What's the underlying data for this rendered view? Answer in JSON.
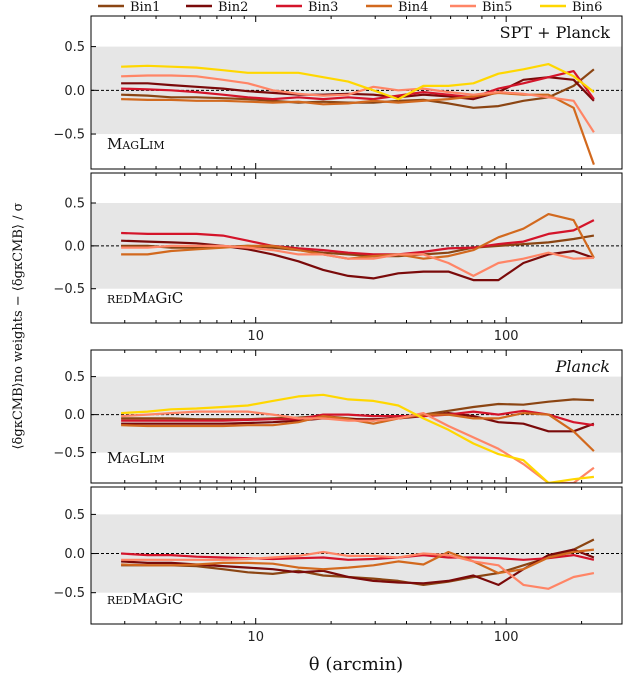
{
  "legend": {
    "entries": [
      {
        "name": "Bin1",
        "color": "#8b4513"
      },
      {
        "name": "Bin2",
        "color": "#7a0a0a"
      },
      {
        "name": "Bin3",
        "color": "#d4142a"
      },
      {
        "name": "Bin4",
        "color": "#d2691e"
      },
      {
        "name": "Bin5",
        "color": "#ff8566"
      },
      {
        "name": "Bin6",
        "color": "#ffd700"
      }
    ]
  },
  "ylabel": "⟨δgκCMB⟩no weights − ⟨δgκCMB⟩ / σ",
  "xlabel": "θ (arcmin)",
  "chart_data": [
    {
      "type": "line",
      "panel_label": "MagLim",
      "corner_label": "SPT + Planck",
      "ylim": [
        -0.9,
        0.85
      ],
      "xlim": [
        2.2,
        290
      ],
      "xscale": "log",
      "band": [
        -0.5,
        0.5
      ],
      "yticks": [
        "0.5",
        "0.0",
        "−0.5"
      ],
      "xticklabels": [],
      "x": [
        2.9,
        3.7,
        4.6,
        5.8,
        7.4,
        9.3,
        11.7,
        14.8,
        18.6,
        23.4,
        29.5,
        37.1,
        46.7,
        58.8,
        74.0,
        93.1,
        117.2,
        147.6,
        185.8,
        223.9
      ],
      "series": [
        {
          "name": "Bin1",
          "color": "#8b4513",
          "values": [
            -0.05,
            -0.06,
            -0.08,
            -0.08,
            -0.09,
            -0.1,
            -0.12,
            -0.14,
            -0.13,
            -0.14,
            -0.14,
            -0.12,
            -0.11,
            -0.15,
            -0.2,
            -0.18,
            -0.12,
            -0.08,
            0.05,
            0.24
          ]
        },
        {
          "name": "Bin2",
          "color": "#7a0a0a",
          "values": [
            0.08,
            0.08,
            0.06,
            0.04,
            0.02,
            -0.01,
            -0.03,
            -0.05,
            -0.05,
            -0.04,
            -0.05,
            -0.08,
            -0.05,
            -0.07,
            -0.1,
            -0.02,
            0.12,
            0.15,
            0.12,
            -0.12
          ]
        },
        {
          "name": "Bin3",
          "color": "#d4142a",
          "values": [
            0.02,
            0.01,
            0.0,
            -0.02,
            -0.05,
            -0.08,
            -0.1,
            -0.08,
            -0.1,
            -0.08,
            -0.1,
            -0.06,
            -0.02,
            -0.05,
            -0.08,
            0.02,
            0.08,
            0.15,
            0.22,
            -0.1
          ]
        },
        {
          "name": "Bin4",
          "color": "#d2691e",
          "values": [
            -0.1,
            -0.11,
            -0.11,
            -0.12,
            -0.12,
            -0.13,
            -0.14,
            -0.13,
            -0.16,
            -0.15,
            -0.12,
            -0.14,
            -0.12,
            -0.1,
            -0.07,
            -0.03,
            -0.05,
            -0.05,
            -0.2,
            -0.85
          ]
        },
        {
          "name": "Bin5",
          "color": "#ff8566",
          "values": [
            0.16,
            0.17,
            0.17,
            0.16,
            0.12,
            0.08,
            0.0,
            -0.04,
            -0.06,
            -0.05,
            0.04,
            0.0,
            0.02,
            -0.02,
            -0.05,
            -0.02,
            -0.04,
            -0.08,
            -0.12,
            -0.48
          ]
        },
        {
          "name": "Bin6",
          "color": "#ffd700",
          "values": [
            0.27,
            0.28,
            0.27,
            0.26,
            0.23,
            0.2,
            0.2,
            0.2,
            0.15,
            0.1,
            0.0,
            -0.1,
            0.05,
            0.05,
            0.08,
            0.19,
            0.24,
            0.3,
            0.16,
            -0.02
          ]
        }
      ]
    },
    {
      "type": "line",
      "panel_label": "redMaGiC",
      "corner_label": "",
      "ylim": [
        -0.9,
        0.85
      ],
      "xlim": [
        2.2,
        290
      ],
      "xscale": "log",
      "band": [
        -0.5,
        0.5
      ],
      "yticks": [
        "0.5",
        "0.0",
        "−0.5"
      ],
      "xticklabels": [
        "10",
        "100"
      ],
      "x": [
        2.9,
        3.7,
        4.6,
        5.8,
        7.4,
        9.3,
        11.7,
        14.8,
        18.6,
        23.4,
        29.5,
        37.1,
        46.7,
        58.8,
        74.0,
        93.1,
        117.2,
        147.6,
        185.8,
        223.9
      ],
      "series": [
        {
          "name": "Bin1",
          "color": "#8b4513",
          "values": [
            0.0,
            0.0,
            -0.02,
            -0.02,
            -0.01,
            0.0,
            -0.02,
            -0.05,
            -0.08,
            -0.1,
            -0.12,
            -0.12,
            -0.1,
            -0.08,
            -0.02,
            0.0,
            0.02,
            0.04,
            0.08,
            0.12
          ]
        },
        {
          "name": "Bin2",
          "color": "#7a0a0a",
          "values": [
            0.06,
            0.05,
            0.04,
            0.03,
            0.0,
            -0.04,
            -0.1,
            -0.18,
            -0.28,
            -0.35,
            -0.38,
            -0.32,
            -0.3,
            -0.3,
            -0.4,
            -0.4,
            -0.2,
            -0.1,
            -0.06,
            -0.14
          ]
        },
        {
          "name": "Bin3",
          "color": "#d4142a",
          "values": [
            0.15,
            0.14,
            0.14,
            0.14,
            0.12,
            0.06,
            0.0,
            -0.03,
            -0.05,
            -0.08,
            -0.1,
            -0.1,
            -0.07,
            -0.03,
            -0.02,
            0.02,
            0.05,
            0.14,
            0.18,
            0.3
          ]
        },
        {
          "name": "Bin4",
          "color": "#d2691e",
          "values": [
            -0.1,
            -0.1,
            -0.06,
            -0.04,
            -0.02,
            0.0,
            0.0,
            -0.05,
            -0.1,
            -0.15,
            -0.12,
            -0.1,
            -0.15,
            -0.12,
            -0.05,
            0.1,
            0.2,
            0.37,
            0.3,
            -0.14
          ]
        },
        {
          "name": "Bin5",
          "color": "#ff8566",
          "values": [
            -0.02,
            -0.02,
            0.0,
            0.0,
            0.0,
            -0.02,
            -0.05,
            -0.1,
            -0.1,
            -0.15,
            -0.15,
            -0.1,
            -0.1,
            -0.2,
            -0.35,
            -0.2,
            -0.15,
            -0.08,
            -0.15,
            -0.14
          ]
        },
        {
          "name": "Bin6",
          "color": "#ffd700",
          "values": [
            null,
            null,
            null,
            null,
            null,
            null,
            null,
            null,
            null,
            null,
            null,
            null,
            null,
            null,
            null,
            null,
            null,
            null,
            null,
            null
          ]
        }
      ]
    },
    {
      "type": "line",
      "panel_label": "MagLim",
      "corner_label": "Planck",
      "ylim": [
        -0.9,
        0.85
      ],
      "xlim": [
        2.2,
        290
      ],
      "xscale": "log",
      "band": [
        -0.5,
        0.5
      ],
      "yticks": [
        "0.5",
        "0.0",
        "−0.5"
      ],
      "xticklabels": [],
      "x": [
        2.9,
        3.7,
        4.6,
        5.8,
        7.4,
        9.3,
        11.7,
        14.8,
        18.6,
        23.4,
        29.5,
        37.1,
        46.7,
        58.8,
        74.0,
        93.1,
        117.2,
        147.6,
        185.8,
        223.9
      ],
      "series": [
        {
          "name": "Bin1",
          "color": "#8b4513",
          "values": [
            -0.05,
            -0.05,
            -0.05,
            -0.06,
            -0.06,
            -0.06,
            -0.05,
            -0.04,
            -0.02,
            -0.05,
            -0.08,
            -0.03,
            0.0,
            0.05,
            0.1,
            0.14,
            0.13,
            0.17,
            0.2,
            0.19
          ]
        },
        {
          "name": "Bin2",
          "color": "#7a0a0a",
          "values": [
            -0.12,
            -0.12,
            -0.12,
            -0.12,
            -0.12,
            -0.11,
            -0.1,
            -0.08,
            -0.05,
            -0.06,
            -0.06,
            -0.05,
            -0.02,
            0.02,
            -0.02,
            -0.1,
            -0.12,
            -0.22,
            -0.22,
            -0.12
          ]
        },
        {
          "name": "Bin3",
          "color": "#d4142a",
          "values": [
            -0.08,
            -0.08,
            -0.08,
            -0.08,
            -0.08,
            -0.07,
            -0.06,
            -0.06,
            0.0,
            0.0,
            -0.02,
            -0.02,
            -0.02,
            0.0,
            0.04,
            0.0,
            0.05,
            0.0,
            -0.1,
            -0.14
          ]
        },
        {
          "name": "Bin4",
          "color": "#d2691e",
          "values": [
            -0.14,
            -0.15,
            -0.15,
            -0.15,
            -0.15,
            -0.14,
            -0.14,
            -0.1,
            -0.02,
            -0.06,
            -0.12,
            -0.05,
            0.0,
            0.0,
            -0.05,
            -0.05,
            0.02,
            0.0,
            -0.22,
            -0.48
          ]
        },
        {
          "name": "Bin5",
          "color": "#ff8566",
          "values": [
            -0.02,
            0.0,
            0.02,
            0.04,
            0.04,
            0.04,
            0.0,
            -0.05,
            -0.05,
            -0.08,
            -0.08,
            -0.05,
            0.02,
            -0.15,
            -0.3,
            -0.45,
            -0.65,
            -0.9,
            -0.9,
            -0.7
          ]
        },
        {
          "name": "Bin6",
          "color": "#ffd700",
          "values": [
            0.02,
            0.04,
            0.07,
            0.08,
            0.1,
            0.12,
            0.18,
            0.24,
            0.26,
            0.2,
            0.18,
            0.12,
            -0.05,
            -0.2,
            -0.38,
            -0.52,
            -0.6,
            -0.9,
            -0.85,
            -0.82
          ]
        }
      ]
    },
    {
      "type": "line",
      "panel_label": "redMaGiC",
      "corner_label": "",
      "ylim": [
        -0.9,
        0.85
      ],
      "xlim": [
        2.2,
        290
      ],
      "xscale": "log",
      "band": [
        -0.5,
        0.5
      ],
      "yticks": [
        "0.5",
        "0.0",
        "−0.5"
      ],
      "xticklabels": [
        "10",
        "100"
      ],
      "x": [
        2.9,
        3.7,
        4.6,
        5.8,
        7.4,
        9.3,
        11.7,
        14.8,
        18.6,
        23.4,
        29.5,
        37.1,
        46.7,
        58.8,
        74.0,
        93.1,
        117.2,
        147.6,
        185.8,
        223.9
      ],
      "series": [
        {
          "name": "Bin1",
          "color": "#8b4513",
          "values": [
            -0.15,
            -0.15,
            -0.15,
            -0.16,
            -0.2,
            -0.24,
            -0.26,
            -0.22,
            -0.28,
            -0.3,
            -0.32,
            -0.35,
            -0.4,
            -0.36,
            -0.3,
            -0.25,
            -0.15,
            -0.05,
            0.05,
            0.18
          ]
        },
        {
          "name": "Bin2",
          "color": "#7a0a0a",
          "values": [
            -0.1,
            -0.12,
            -0.12,
            -0.14,
            -0.16,
            -0.18,
            -0.2,
            -0.24,
            -0.22,
            -0.3,
            -0.35,
            -0.37,
            -0.38,
            -0.35,
            -0.28,
            -0.4,
            -0.2,
            -0.02,
            0.05,
            -0.05
          ]
        },
        {
          "name": "Bin3",
          "color": "#d4142a",
          "values": [
            0.0,
            -0.02,
            -0.02,
            -0.04,
            -0.05,
            -0.06,
            -0.07,
            -0.06,
            -0.05,
            -0.08,
            -0.07,
            -0.05,
            -0.02,
            -0.05,
            -0.05,
            -0.06,
            -0.08,
            -0.06,
            -0.02,
            -0.08
          ]
        },
        {
          "name": "Bin4",
          "color": "#d2691e",
          "values": [
            -0.14,
            -0.15,
            -0.15,
            -0.14,
            -0.12,
            -0.12,
            -0.13,
            -0.18,
            -0.2,
            -0.18,
            -0.15,
            -0.1,
            -0.14,
            0.02,
            -0.1,
            -0.25,
            -0.2,
            -0.05,
            0.02,
            0.05
          ]
        },
        {
          "name": "Bin5",
          "color": "#ff8566",
          "values": [
            -0.08,
            -0.08,
            -0.08,
            -0.08,
            -0.08,
            -0.07,
            -0.05,
            -0.03,
            0.02,
            -0.03,
            -0.03,
            -0.05,
            0.0,
            -0.02,
            -0.1,
            -0.15,
            -0.4,
            -0.45,
            -0.3,
            -0.25
          ]
        },
        {
          "name": "Bin6",
          "color": "#ffd700",
          "values": [
            null,
            null,
            null,
            null,
            null,
            null,
            null,
            null,
            null,
            null,
            null,
            null,
            null,
            null,
            null,
            null,
            null,
            null,
            null,
            null
          ]
        }
      ]
    }
  ]
}
